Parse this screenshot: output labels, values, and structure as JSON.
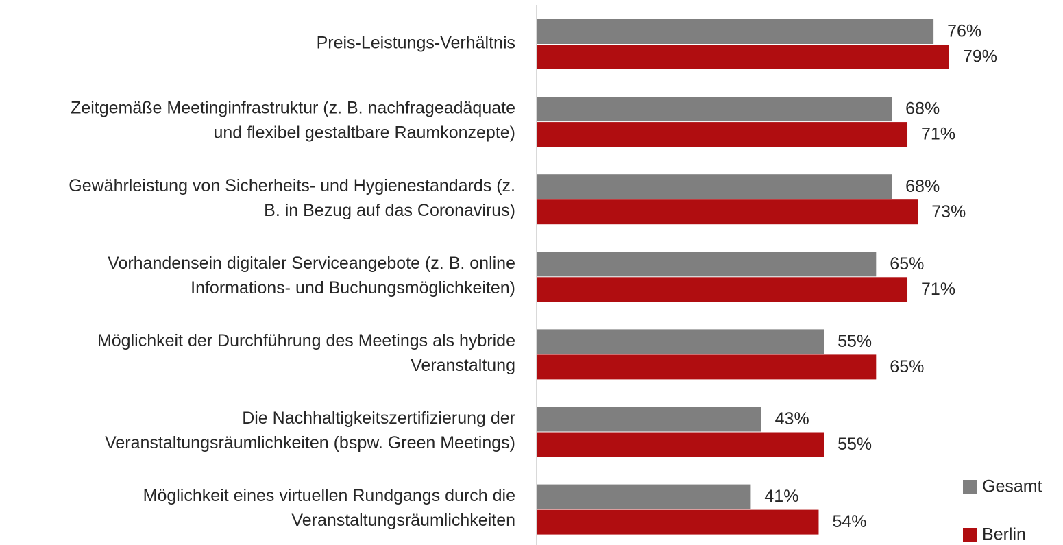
{
  "chart_data": {
    "type": "bar",
    "orientation": "horizontal",
    "categories": [
      [
        "Preis-Leistungs-Verhältnis"
      ],
      [
        "Zeitgemäße Meetinginfrastruktur (z. B. nachfrageadäquate",
        "und flexibel gestaltbare Raumkonzepte)"
      ],
      [
        "Gewährleistung von Sicherheits- und Hygienestandards (z.",
        "B. in Bezug auf das Coronavirus)"
      ],
      [
        "Vorhandensein digitaler Serviceangebote (z. B. online",
        "Informations- und Buchungsmöglichkeiten)"
      ],
      [
        "Möglichkeit der Durchführung des Meetings als hybride",
        "Veranstaltung"
      ],
      [
        "Die Nachhaltigkeitszertifizierung der",
        "Veranstaltungsräumlichkeiten (bspw. Green Meetings)"
      ],
      [
        "Möglichkeit eines virtuellen Rundgangs durch die",
        "Veranstaltungsräumlichkeiten"
      ]
    ],
    "series": [
      {
        "name": "Gesamt",
        "color": "#7f7f7f",
        "values": [
          76,
          68,
          68,
          65,
          55,
          43,
          41
        ],
        "value_labels": [
          "76%",
          "68%",
          "68%",
          "65%",
          "55%",
          "43%",
          "41%"
        ]
      },
      {
        "name": "Berlin",
        "color": "#b00d10",
        "values": [
          79,
          71,
          73,
          71,
          65,
          55,
          54
        ],
        "value_labels": [
          "79%",
          "71%",
          "73%",
          "71%",
          "65%",
          "55%",
          "54%"
        ]
      }
    ],
    "xlim": [
      0,
      100
    ],
    "legend": "bottom-right"
  }
}
